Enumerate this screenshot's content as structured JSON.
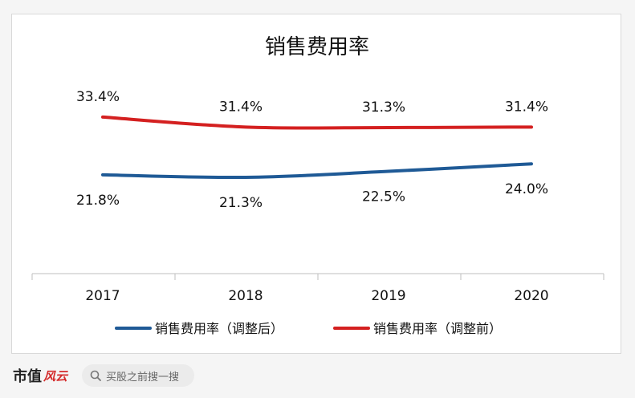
{
  "chart_data": {
    "type": "line",
    "title": "销售费用率",
    "categories": [
      "2017",
      "2018",
      "2019",
      "2020"
    ],
    "series": [
      {
        "name": "销售费用率（调整后）",
        "values": [
          21.8,
          21.3,
          22.5,
          24.0
        ],
        "labels": [
          "21.8%",
          "21.3%",
          "22.5%",
          "24.0%"
        ],
        "color": "#1f5a96"
      },
      {
        "name": "销售费用率（调整前）",
        "values": [
          33.4,
          31.4,
          31.3,
          31.4
        ],
        "labels": [
          "33.4%",
          "31.4%",
          "31.3%",
          "31.4%"
        ],
        "color": "#d42020"
      }
    ],
    "legend": "bottom",
    "grid": false
  },
  "footer": {
    "logo_text": "市值",
    "logo_mark": "风云",
    "search_icon": "search-icon",
    "search_placeholder": "买股之前搜一搜"
  }
}
